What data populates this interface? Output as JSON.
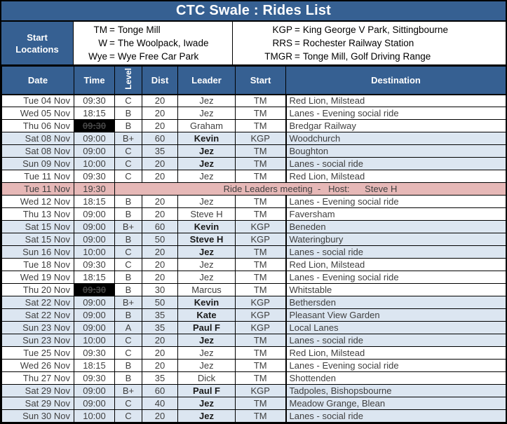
{
  "title": "CTC Swale : Rides List",
  "legend": {
    "label_line1": "Start",
    "label_line2": "Locations",
    "left": [
      {
        "abbr": "TM",
        "eq": "=",
        "name": "Tonge Mill"
      },
      {
        "abbr": "W",
        "eq": "=",
        "name": "The Woolpack, Iwade"
      },
      {
        "abbr": "Wye",
        "eq": "=",
        "name": "Wye Free Car Park"
      }
    ],
    "right": [
      {
        "abbr": "KGP",
        "eq": "=",
        "name": "King George V Park, Sittingbourne"
      },
      {
        "abbr": "RRS",
        "eq": "=",
        "name": "Rochester Railway Station"
      },
      {
        "abbr": "TMGR",
        "eq": "=",
        "name": "Tonge Mill, Golf Driving Range"
      }
    ]
  },
  "table": {
    "headers": {
      "date": "Date",
      "time": "Time",
      "level": "Level",
      "dist": "Dist",
      "leader": "Leader",
      "start": "Start",
      "destination": "Destination"
    },
    "rows": [
      {
        "type": "ride",
        "date": "Tue 04 Nov",
        "time": "09:30",
        "level": "C",
        "dist": "20",
        "leader": "Jez",
        "start": "TM",
        "destination": "Red Lion, Milstead",
        "weekend": false,
        "cancelled_time": false
      },
      {
        "type": "ride",
        "date": "Wed 05 Nov",
        "time": "18:15",
        "level": "B",
        "dist": "20",
        "leader": "Jez",
        "start": "TM",
        "destination": "Lanes - Evening social ride",
        "weekend": false,
        "cancelled_time": false
      },
      {
        "type": "ride",
        "date": "Thu 06 Nov",
        "time": "09:30",
        "level": "B",
        "dist": "20",
        "leader": "Graham",
        "start": "TM",
        "destination": "Bredgar Railway",
        "weekend": false,
        "cancelled_time": true
      },
      {
        "type": "ride",
        "date": "Sat 08 Nov",
        "time": "09:00",
        "level": "B+",
        "dist": "60",
        "leader": "Kevin",
        "start": "KGP",
        "destination": "Woodchurch",
        "weekend": true,
        "cancelled_time": false
      },
      {
        "type": "ride",
        "date": "Sat 08 Nov",
        "time": "09:00",
        "level": "C",
        "dist": "35",
        "leader": "Jez",
        "start": "TM",
        "destination": "Boughton",
        "weekend": true,
        "cancelled_time": false
      },
      {
        "type": "ride",
        "date": "Sun 09 Nov",
        "time": "10:00",
        "level": "C",
        "dist": "20",
        "leader": "Jez",
        "start": "TM",
        "destination": "Lanes - social ride",
        "weekend": true,
        "cancelled_time": false
      },
      {
        "type": "ride",
        "date": "Tue 11 Nov",
        "time": "09:30",
        "level": "C",
        "dist": "20",
        "leader": "Jez",
        "start": "TM",
        "destination": "Red Lion, Milstead",
        "weekend": false,
        "cancelled_time": false
      },
      {
        "type": "meeting",
        "date": "Tue 11 Nov",
        "time": "19:30",
        "meeting_text": "Ride Leaders meeting  -   Host:      Steve H",
        "weekend": false,
        "cancelled_time": false
      },
      {
        "type": "ride",
        "date": "Wed 12 Nov",
        "time": "18:15",
        "level": "B",
        "dist": "20",
        "leader": "Jez",
        "start": "TM",
        "destination": "Lanes - Evening social ride",
        "weekend": false,
        "cancelled_time": false
      },
      {
        "type": "ride",
        "date": "Thu 13 Nov",
        "time": "09:00",
        "level": "B",
        "dist": "20",
        "leader": "Steve H",
        "start": "TM",
        "destination": "Faversham",
        "weekend": false,
        "cancelled_time": false
      },
      {
        "type": "ride",
        "date": "Sat 15 Nov",
        "time": "09:00",
        "level": "B+",
        "dist": "60",
        "leader": "Kevin",
        "start": "KGP",
        "destination": "Beneden",
        "weekend": true,
        "cancelled_time": false
      },
      {
        "type": "ride",
        "date": "Sat 15 Nov",
        "time": "09:00",
        "level": "B",
        "dist": "50",
        "leader": "Steve H",
        "start": "KGP",
        "destination": "Wateringbury",
        "weekend": true,
        "cancelled_time": false
      },
      {
        "type": "ride",
        "date": "Sun 16 Nov",
        "time": "10:00",
        "level": "C",
        "dist": "20",
        "leader": "Jez",
        "start": "TM",
        "destination": "Lanes - social ride",
        "weekend": true,
        "cancelled_time": false
      },
      {
        "type": "ride",
        "date": "Tue 18 Nov",
        "time": "09:30",
        "level": "C",
        "dist": "20",
        "leader": "Jez",
        "start": "TM",
        "destination": "Red Lion, Milstead",
        "weekend": false,
        "cancelled_time": false
      },
      {
        "type": "ride",
        "date": "Wed 19 Nov",
        "time": "18:15",
        "level": "B",
        "dist": "20",
        "leader": "Jez",
        "start": "TM",
        "destination": "Lanes - Evening social ride",
        "weekend": false,
        "cancelled_time": false
      },
      {
        "type": "ride",
        "date": "Thu 20 Nov",
        "time": "09:30",
        "level": "B",
        "dist": "30",
        "leader": "Marcus",
        "start": "TM",
        "destination": "Whitstable",
        "weekend": false,
        "cancelled_time": true
      },
      {
        "type": "ride",
        "date": "Sat 22 Nov",
        "time": "09:00",
        "level": "B+",
        "dist": "50",
        "leader": "Kevin",
        "start": "KGP",
        "destination": "Bethersden",
        "weekend": true,
        "cancelled_time": false
      },
      {
        "type": "ride",
        "date": "Sat 22 Nov",
        "time": "09:00",
        "level": "B",
        "dist": "35",
        "leader": "Kate",
        "start": "KGP",
        "destination": "Pleasant View Garden",
        "weekend": true,
        "cancelled_time": false
      },
      {
        "type": "ride",
        "date": "Sun 23 Nov",
        "time": "09:00",
        "level": "A",
        "dist": "35",
        "leader": "Paul F",
        "start": "KGP",
        "destination": "Local Lanes",
        "weekend": true,
        "cancelled_time": false
      },
      {
        "type": "ride",
        "date": "Sun 23 Nov",
        "time": "10:00",
        "level": "C",
        "dist": "20",
        "leader": "Jez",
        "start": "TM",
        "destination": "Lanes - social ride",
        "weekend": true,
        "cancelled_time": false
      },
      {
        "type": "ride",
        "date": "Tue 25 Nov",
        "time": "09:30",
        "level": "C",
        "dist": "20",
        "leader": "Jez",
        "start": "TM",
        "destination": "Red Lion, Milstead",
        "weekend": false,
        "cancelled_time": false
      },
      {
        "type": "ride",
        "date": "Wed 26 Nov",
        "time": "18:15",
        "level": "B",
        "dist": "20",
        "leader": "Jez",
        "start": "TM",
        "destination": "Lanes - Evening social ride",
        "weekend": false,
        "cancelled_time": false
      },
      {
        "type": "ride",
        "date": "Thu 27 Nov",
        "time": "09:30",
        "level": "B",
        "dist": "35",
        "leader": "Dick",
        "start": "TM",
        "destination": "Shottenden",
        "weekend": false,
        "cancelled_time": false
      },
      {
        "type": "ride",
        "date": "Sat 29 Nov",
        "time": "09:00",
        "level": "B+",
        "dist": "60",
        "leader": "Paul F",
        "start": "KGP",
        "destination": "Tadpoles, Bishopsbourne",
        "weekend": true,
        "cancelled_time": false
      },
      {
        "type": "ride",
        "date": "Sat 29 Nov",
        "time": "09:00",
        "level": "C",
        "dist": "40",
        "leader": "Jez",
        "start": "TM",
        "destination": "Meadow Grange, Blean",
        "weekend": true,
        "cancelled_time": false
      },
      {
        "type": "ride",
        "date": "Sun 30 Nov",
        "time": "10:00",
        "level": "C",
        "dist": "20",
        "leader": "Jez",
        "start": "TM",
        "destination": "Lanes - social ride",
        "weekend": true,
        "cancelled_time": false
      }
    ]
  },
  "colors": {
    "header_blue": "#366092",
    "weekend_row_blue": "#dce6f1",
    "meeting_pink": "#e6b8b7",
    "cancelled_black": "#000000",
    "body_text": "#3f3f3f",
    "header_text": "#ffffff"
  }
}
